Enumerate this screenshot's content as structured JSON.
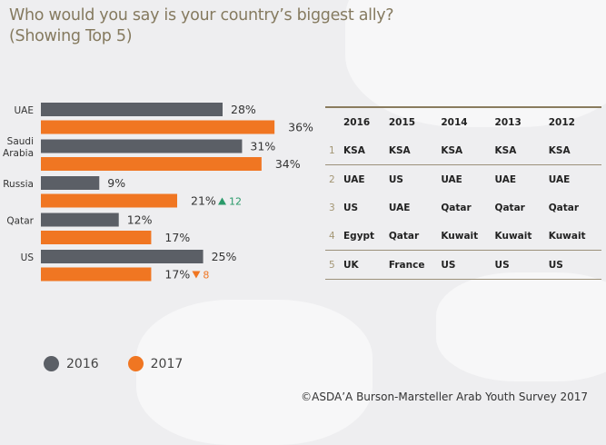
{
  "colors": {
    "s2016": "#5b5f66",
    "s2017": "#f07622",
    "up": "#2a9a6a",
    "down": "#f07622",
    "title": "#857a5f"
  },
  "title_line1": "Who would you say is your country’s biggest ally?",
  "title_line2": "(Showing Top 5)",
  "chart_data": {
    "type": "bar",
    "orientation": "horizontal",
    "title": "Who would you say is your country’s biggest ally? (Showing Top 5)",
    "categories": [
      "UAE",
      "Saudi Arabia",
      "Russia",
      "Qatar",
      "US"
    ],
    "category_lines": [
      [
        "UAE"
      ],
      [
        "Saudi",
        "Arabia"
      ],
      [
        "Russia"
      ],
      [
        "Qatar"
      ],
      [
        "US"
      ]
    ],
    "series": [
      {
        "name": "2016",
        "values": [
          28,
          31,
          9,
          12,
          25
        ],
        "labels": [
          "28%",
          "31%",
          "9%",
          "12%",
          "25%"
        ]
      },
      {
        "name": "2017",
        "values": [
          36,
          34,
          21,
          17,
          17
        ],
        "labels": [
          "36%",
          "34%",
          "21%",
          "17%",
          "17%"
        ]
      }
    ],
    "annotations": [
      {
        "category": "Russia",
        "direction": "up",
        "text": "12"
      },
      {
        "category": "US",
        "direction": "down",
        "text": "8"
      }
    ],
    "xlim": [
      0,
      40
    ],
    "grid": false,
    "legend": {
      "placement": "bottom-left",
      "entries": [
        "2016",
        "2017"
      ]
    }
  },
  "table": {
    "headers": [
      "2016",
      "2015",
      "2014",
      "2013",
      "2012"
    ],
    "rows": [
      {
        "rank": "1",
        "cells": [
          "KSA",
          "KSA",
          "KSA",
          "KSA",
          "KSA"
        ]
      },
      {
        "rank": "2",
        "cells": [
          "UAE",
          "US",
          "UAE",
          "UAE",
          "UAE"
        ]
      },
      {
        "rank": "3",
        "cells": [
          "US",
          "UAE",
          "Qatar",
          "Qatar",
          "Qatar"
        ]
      },
      {
        "rank": "4",
        "cells": [
          "Egypt",
          "Qatar",
          "Kuwait",
          "Kuwait",
          "Kuwait"
        ]
      },
      {
        "rank": "5",
        "cells": [
          "UK",
          "France",
          "US",
          "US",
          "US"
        ]
      }
    ]
  },
  "copyright": "©ASDA’A Burson-Marsteller Arab Youth Survey 2017"
}
